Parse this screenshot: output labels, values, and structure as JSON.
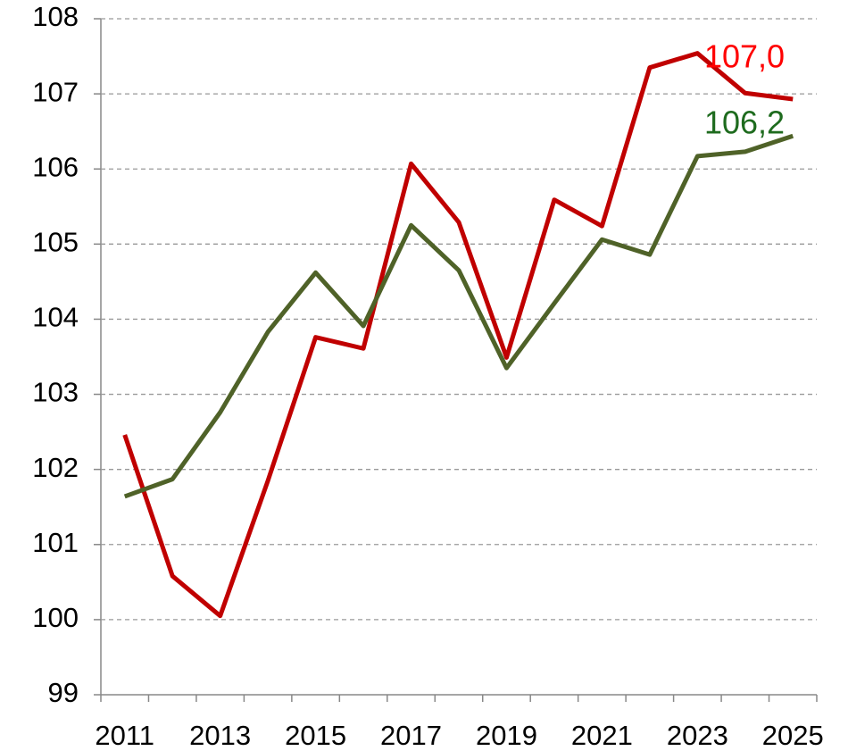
{
  "chart_data": {
    "type": "line",
    "categories": [
      "2011",
      null,
      "2013",
      null,
      "2015",
      null,
      "2017",
      null,
      "2019",
      null,
      "2021",
      null,
      "2023",
      null,
      "2025"
    ],
    "series": [
      {
        "color": "#c00000",
        "values": [
          102.46,
          100.58,
          100.05,
          101.85,
          103.76,
          103.61,
          106.07,
          105.29,
          103.49,
          105.59,
          105.24,
          107.35,
          107.54,
          107.01,
          106.93
        ]
      },
      {
        "color": "#4f6228",
        "values": [
          101.64,
          101.87,
          102.76,
          103.83,
          104.62,
          103.91,
          105.25,
          104.65,
          103.35,
          104.21,
          105.06,
          104.86,
          106.17,
          106.23,
          106.44
        ]
      }
    ],
    "annotations": [
      {
        "text": "107,0",
        "color": "#ff0000"
      },
      {
        "text": "106,2",
        "color": "#1e6b1e"
      }
    ],
    "ylim": [
      99,
      108
    ],
    "yticks": [
      99,
      100,
      101,
      102,
      103,
      104,
      105,
      106,
      107,
      108
    ],
    "grid": true
  }
}
